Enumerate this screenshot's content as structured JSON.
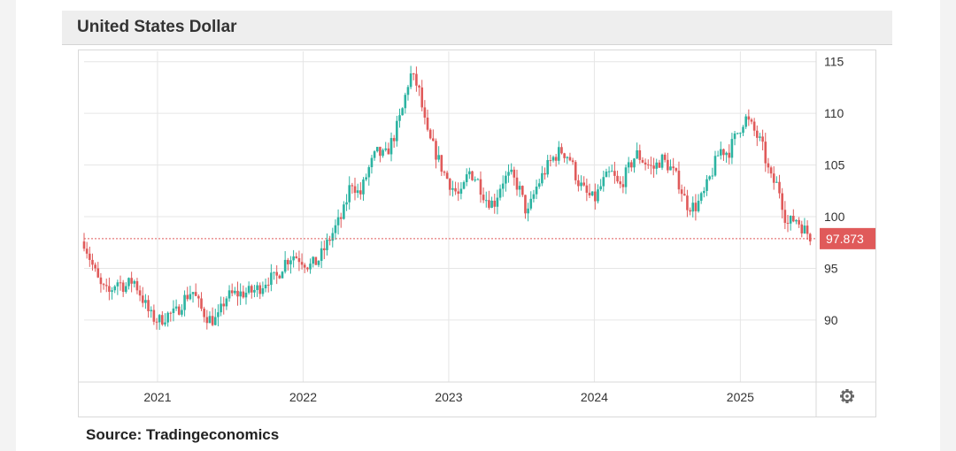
{
  "header": {
    "title": "United States Dollar"
  },
  "footer": {
    "source": "Source: Tradingeconomics"
  },
  "settings_icon": "gear-icon",
  "colors": {
    "up": "#2bb3a1",
    "down": "#e05a5a",
    "grid": "#e6e6e6",
    "last_line": "#e05a5a",
    "label_bg": "#e05a5a"
  },
  "chart_data": {
    "type": "line",
    "style": "candlestick",
    "title": "United States Dollar",
    "ylim": [
      84,
      116
    ],
    "xlim": [
      "2020-07-01",
      "2025-07-10"
    ],
    "y_ticks": [
      90,
      95,
      100,
      105,
      110,
      115
    ],
    "x_ticks": [
      "2021",
      "2022",
      "2023",
      "2024",
      "2025"
    ],
    "grid": true,
    "last_value": 97.873,
    "last_value_label": "97.873",
    "series": [
      {
        "points": [
          [
            "2020-07-01",
            97.6
          ],
          [
            "2020-07-20",
            95.5
          ],
          [
            "2020-08-10",
            93.3
          ],
          [
            "2020-08-31",
            92.5
          ],
          [
            "2020-09-21",
            93.8
          ],
          [
            "2020-10-12",
            93.2
          ],
          [
            "2020-11-02",
            93.9
          ],
          [
            "2020-11-23",
            92.2
          ],
          [
            "2020-12-14",
            90.4
          ],
          [
            "2021-01-04",
            89.9
          ],
          [
            "2021-01-25",
            90.5
          ],
          [
            "2021-02-15",
            90.6
          ],
          [
            "2021-03-08",
            92.0
          ],
          [
            "2021-03-29",
            92.9
          ],
          [
            "2021-04-19",
            91.1
          ],
          [
            "2021-05-10",
            90.1
          ],
          [
            "2021-05-31",
            90.0
          ],
          [
            "2021-06-21",
            92.2
          ],
          [
            "2021-07-12",
            92.5
          ],
          [
            "2021-08-02",
            92.6
          ],
          [
            "2021-08-23",
            92.7
          ],
          [
            "2021-09-13",
            93.1
          ],
          [
            "2021-10-04",
            94.0
          ],
          [
            "2021-10-25",
            94.0
          ],
          [
            "2021-11-15",
            95.6
          ],
          [
            "2021-12-06",
            96.3
          ],
          [
            "2021-12-27",
            95.9
          ],
          [
            "2022-01-17",
            95.2
          ],
          [
            "2022-02-07",
            95.7
          ],
          [
            "2022-02-28",
            97.2
          ],
          [
            "2022-03-21",
            98.8
          ],
          [
            "2022-04-11",
            100.2
          ],
          [
            "2022-05-02",
            103.5
          ],
          [
            "2022-05-23",
            102.0
          ],
          [
            "2022-06-13",
            104.5
          ],
          [
            "2022-07-04",
            106.2
          ],
          [
            "2022-07-25",
            105.8
          ],
          [
            "2022-08-15",
            107.6
          ],
          [
            "2022-09-05",
            110.0
          ],
          [
            "2022-09-26",
            113.8
          ],
          [
            "2022-10-17",
            112.5
          ],
          [
            "2022-11-07",
            108.0
          ],
          [
            "2022-11-28",
            106.3
          ],
          [
            "2022-12-19",
            104.3
          ],
          [
            "2023-01-09",
            102.9
          ],
          [
            "2023-01-30",
            101.8
          ],
          [
            "2023-02-20",
            104.4
          ],
          [
            "2023-03-13",
            103.6
          ],
          [
            "2023-04-03",
            101.8
          ],
          [
            "2023-04-24",
            101.2
          ],
          [
            "2023-05-15",
            103.5
          ],
          [
            "2023-06-05",
            104.0
          ],
          [
            "2023-06-26",
            102.8
          ],
          [
            "2023-07-17",
            100.1
          ],
          [
            "2023-08-07",
            102.7
          ],
          [
            "2023-08-28",
            104.3
          ],
          [
            "2023-09-18",
            105.6
          ],
          [
            "2023-10-09",
            106.4
          ],
          [
            "2023-10-30",
            105.8
          ],
          [
            "2023-11-20",
            103.5
          ],
          [
            "2023-12-11",
            102.2
          ],
          [
            "2024-01-01",
            101.6
          ],
          [
            "2024-01-22",
            103.3
          ],
          [
            "2024-02-12",
            104.3
          ],
          [
            "2024-03-04",
            102.8
          ],
          [
            "2024-03-25",
            104.5
          ],
          [
            "2024-04-15",
            106.1
          ],
          [
            "2024-05-06",
            105.3
          ],
          [
            "2024-05-27",
            104.6
          ],
          [
            "2024-06-17",
            105.6
          ],
          [
            "2024-07-08",
            104.8
          ],
          [
            "2024-07-29",
            103.5
          ],
          [
            "2024-08-19",
            101.2
          ],
          [
            "2024-09-09",
            100.9
          ],
          [
            "2024-09-30",
            102.0
          ],
          [
            "2024-10-21",
            104.2
          ],
          [
            "2024-11-11",
            106.5
          ],
          [
            "2024-12-02",
            106.2
          ],
          [
            "2024-12-23",
            108.0
          ],
          [
            "2025-01-13",
            109.6
          ],
          [
            "2025-02-03",
            108.4
          ],
          [
            "2025-02-24",
            106.9
          ],
          [
            "2025-03-17",
            103.7
          ],
          [
            "2025-04-07",
            102.9
          ],
          [
            "2025-04-28",
            99.2
          ],
          [
            "2025-05-19",
            99.9
          ],
          [
            "2025-06-09",
            98.8
          ],
          [
            "2025-06-30",
            97.9
          ]
        ]
      }
    ]
  }
}
